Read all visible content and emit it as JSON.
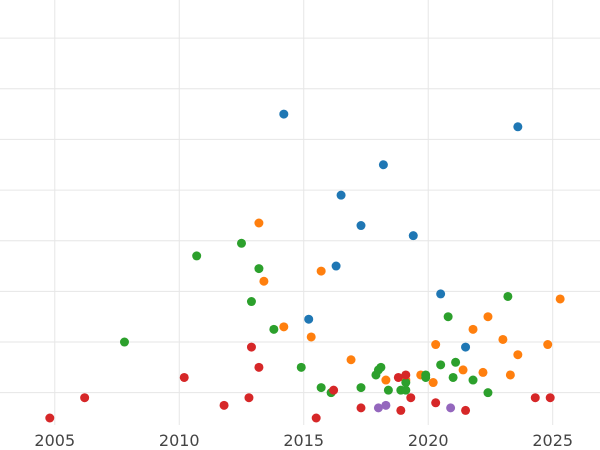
{
  "chart_data": {
    "type": "scatter",
    "title": "",
    "xlabel": "",
    "ylabel": "",
    "xlim": [
      2002.8,
      2026.9
    ],
    "ylim": [
      0,
      15.4
    ],
    "grid": true,
    "legend": "none",
    "x_ticks": [
      2005,
      2010,
      2015,
      2020,
      2025
    ],
    "y_ticks": [
      1,
      3,
      5,
      7,
      9,
      11,
      13,
      15
    ],
    "series": [
      {
        "color": "#1f77b4",
        "points": [
          [
            2014.2,
            12.0
          ],
          [
            2018.2,
            10.0
          ],
          [
            2016.5,
            8.8
          ],
          [
            2017.3,
            7.6
          ],
          [
            2019.4,
            7.2
          ],
          [
            2016.3,
            6.0
          ],
          [
            2020.5,
            4.9
          ],
          [
            2015.2,
            3.9
          ],
          [
            2021.5,
            2.8
          ],
          [
            2023.6,
            11.5
          ]
        ]
      },
      {
        "color": "#ff7f0e",
        "points": [
          [
            2013.2,
            7.7
          ],
          [
            2013.4,
            5.4
          ],
          [
            2015.7,
            5.8
          ],
          [
            2014.2,
            3.6
          ],
          [
            2015.3,
            3.2
          ],
          [
            2016.9,
            2.3
          ],
          [
            2018.3,
            1.5
          ],
          [
            2019.7,
            1.7
          ],
          [
            2019.1,
            1.5
          ],
          [
            2020.3,
            2.9
          ],
          [
            2020.2,
            1.4
          ],
          [
            2021.4,
            1.9
          ],
          [
            2021.8,
            3.5
          ],
          [
            2022.2,
            1.8
          ],
          [
            2022.4,
            4.0
          ],
          [
            2023.0,
            3.1
          ],
          [
            2023.3,
            1.7
          ],
          [
            2023.6,
            2.5
          ],
          [
            2024.8,
            2.9
          ],
          [
            2025.3,
            4.7
          ]
        ]
      },
      {
        "color": "#2ca02c",
        "points": [
          [
            2007.8,
            3.0
          ],
          [
            2010.7,
            6.4
          ],
          [
            2012.5,
            6.9
          ],
          [
            2013.2,
            5.9
          ],
          [
            2012.9,
            4.6
          ],
          [
            2013.8,
            3.5
          ],
          [
            2014.9,
            2.0
          ],
          [
            2015.7,
            1.2
          ],
          [
            2016.1,
            1.0
          ],
          [
            2017.3,
            1.2
          ],
          [
            2017.9,
            1.7
          ],
          [
            2018.0,
            1.9
          ],
          [
            2018.1,
            2.0
          ],
          [
            2018.4,
            1.1
          ],
          [
            2018.9,
            1.1
          ],
          [
            2019.1,
            1.1
          ],
          [
            2019.1,
            1.4
          ],
          [
            2019.9,
            1.7
          ],
          [
            2019.9,
            1.6
          ],
          [
            2020.5,
            2.1
          ],
          [
            2020.8,
            4.0
          ],
          [
            2021.1,
            2.2
          ],
          [
            2021.0,
            1.6
          ],
          [
            2021.8,
            1.5
          ],
          [
            2022.4,
            1.0
          ],
          [
            2023.2,
            4.8
          ]
        ]
      },
      {
        "color": "#d62728",
        "points": [
          [
            2004.8,
            0.0
          ],
          [
            2006.2,
            0.8
          ],
          [
            2010.2,
            1.6
          ],
          [
            2011.8,
            0.5
          ],
          [
            2012.8,
            0.8
          ],
          [
            2012.9,
            2.8
          ],
          [
            2013.2,
            2.0
          ],
          [
            2015.5,
            0.0
          ],
          [
            2016.2,
            1.1
          ],
          [
            2017.3,
            0.4
          ],
          [
            2018.8,
            1.6
          ],
          [
            2019.1,
            1.7
          ],
          [
            2019.3,
            0.8
          ],
          [
            2018.9,
            0.3
          ],
          [
            2020.3,
            0.6
          ],
          [
            2021.5,
            0.3
          ],
          [
            2024.3,
            0.8
          ],
          [
            2024.9,
            0.8
          ]
        ]
      },
      {
        "color": "#9467bd",
        "points": [
          [
            2018.0,
            0.4
          ],
          [
            2018.3,
            0.5
          ],
          [
            2020.9,
            0.4
          ]
        ]
      }
    ]
  }
}
